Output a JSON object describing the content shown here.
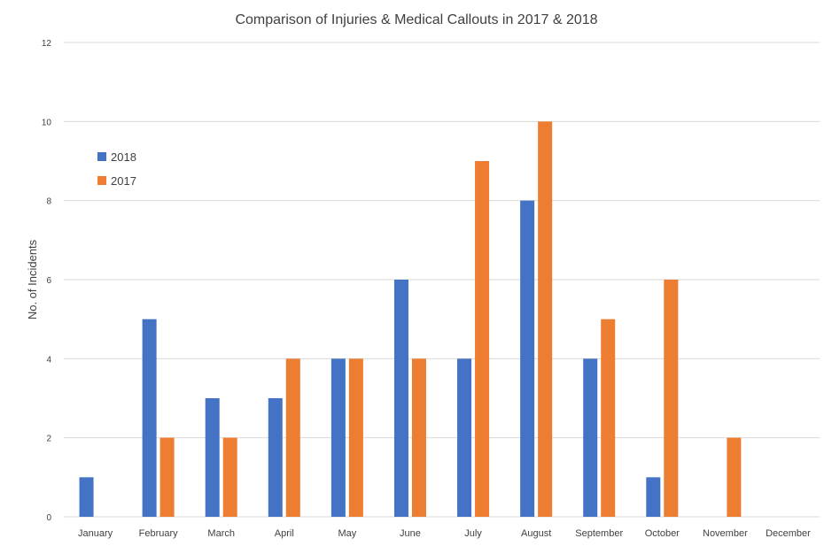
{
  "colors": {
    "series_2018": "#4472C4",
    "series_2017": "#ED7D31",
    "grid": "#D9D9D9",
    "text": "#404040"
  },
  "chart_data": {
    "type": "bar",
    "title": "Comparison of Injuries & Medical Callouts in 2017 & 2018",
    "xlabel": "",
    "ylabel": "No. of Incidents",
    "ylim": [
      0,
      12
    ],
    "yticks": [
      0,
      2,
      4,
      6,
      8,
      10,
      12
    ],
    "grid": true,
    "legend_position": "left",
    "categories": [
      "January",
      "February",
      "March",
      "April",
      "May",
      "June",
      "July",
      "August",
      "September",
      "October",
      "November",
      "December"
    ],
    "series": [
      {
        "name": "2018",
        "values": [
          1,
          5,
          3,
          3,
          4,
          6,
          4,
          8,
          4,
          1,
          0,
          0
        ]
      },
      {
        "name": "2017",
        "values": [
          0,
          2,
          2,
          4,
          4,
          4,
          9,
          10,
          5,
          6,
          2,
          0
        ]
      }
    ]
  }
}
